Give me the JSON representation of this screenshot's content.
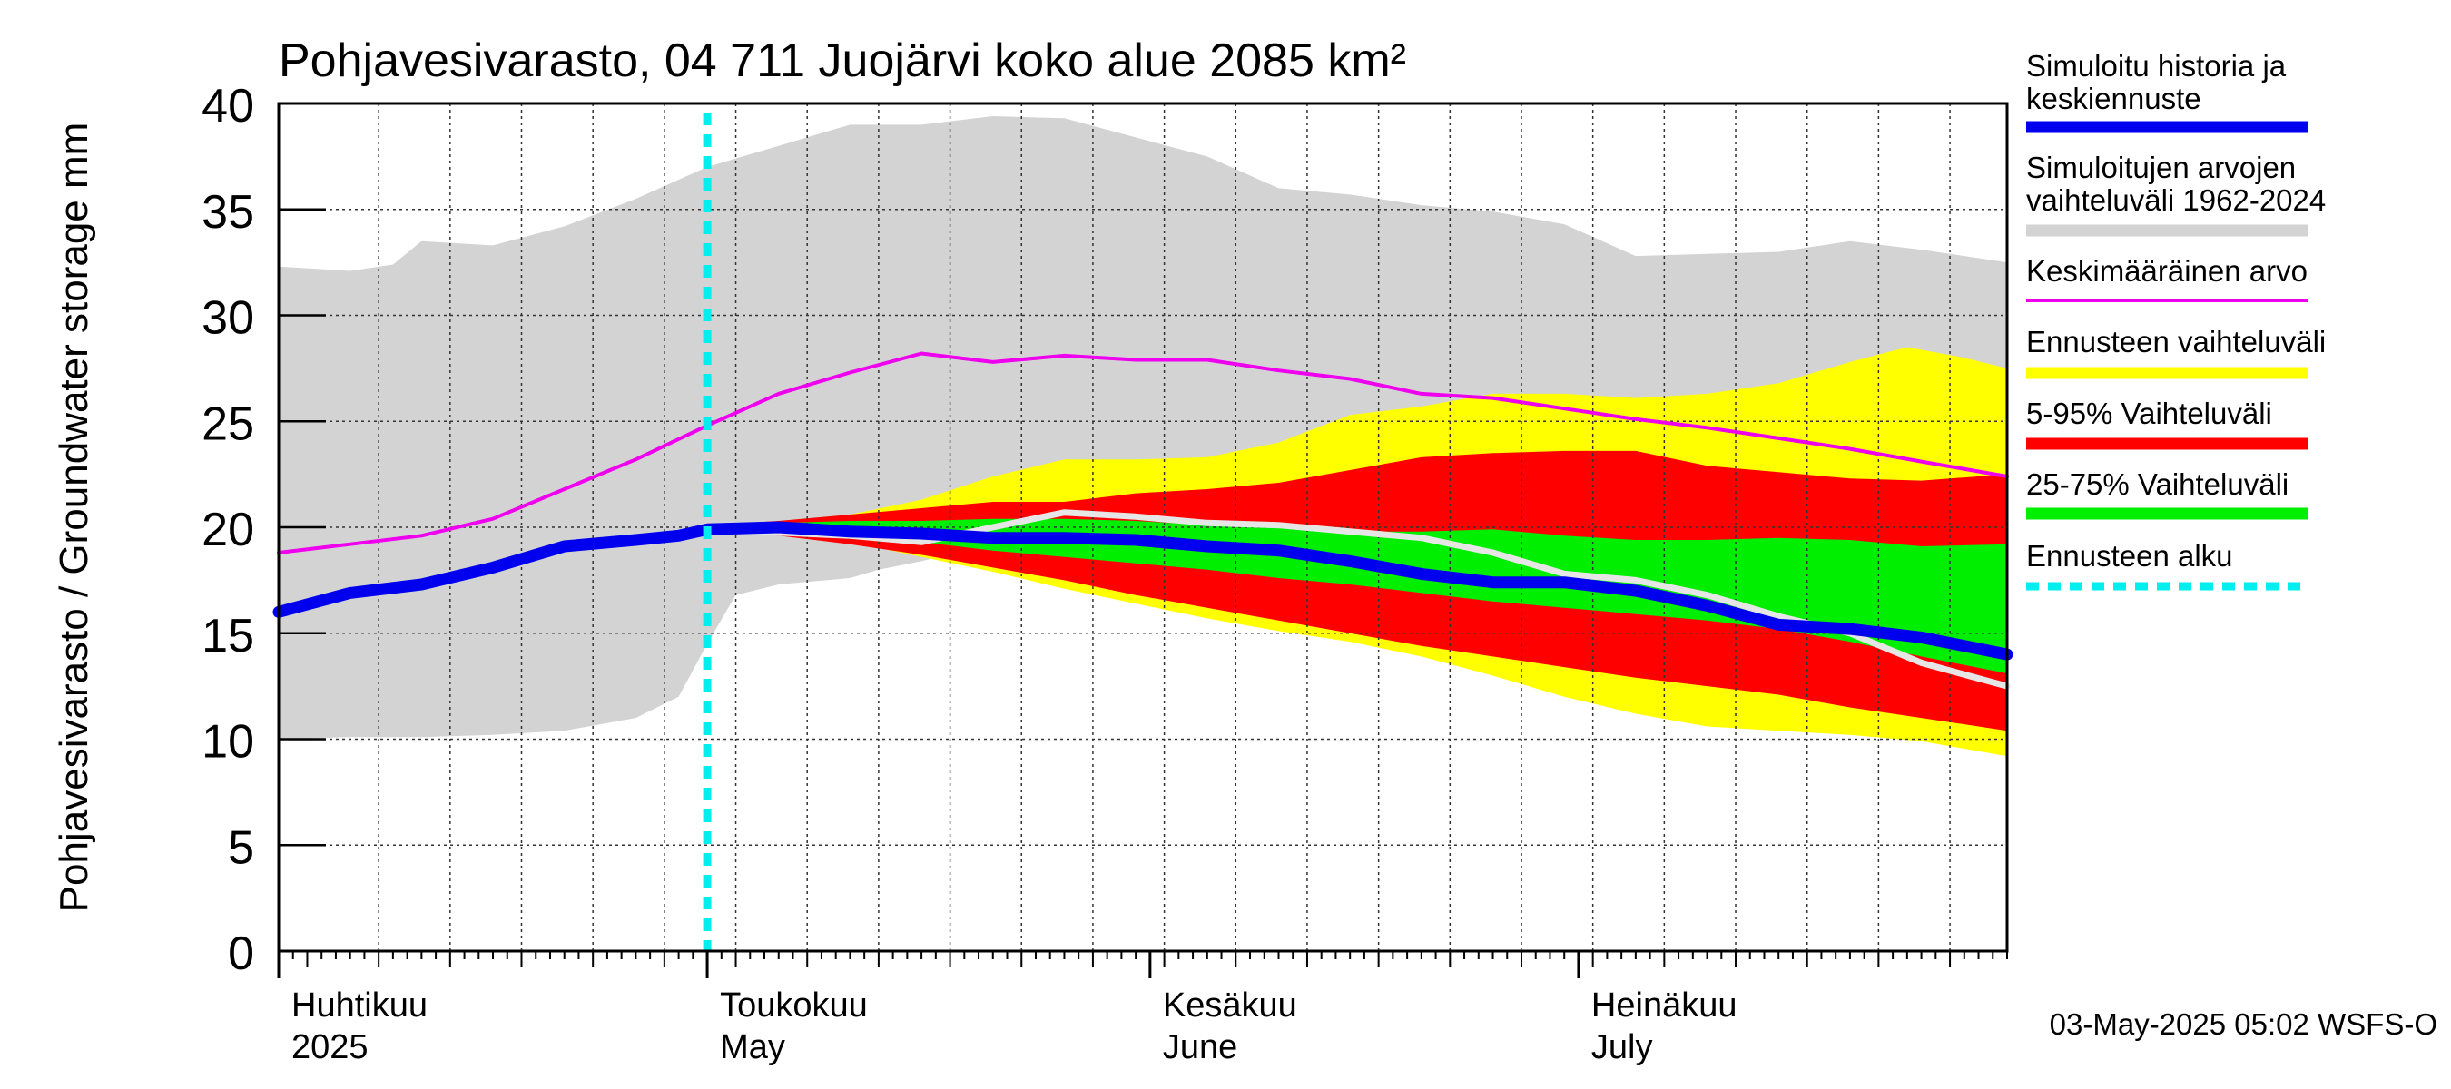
{
  "chart_data": {
    "type": "area",
    "title": "Pohjavesivarasto, 04 711 Juojärvi koko alue 2085 km²",
    "ylabel": "Pohjavesivarasto / Groundwater storage   mm",
    "ylim": [
      0,
      40
    ],
    "xlim": [
      0,
      121
    ],
    "y_ticks": [
      0,
      5,
      10,
      15,
      20,
      25,
      30,
      35,
      40
    ],
    "grid": true,
    "month_labels": [
      {
        "day": 0,
        "fi": "Huhtikuu",
        "en": "2025"
      },
      {
        "day": 30,
        "fi": "Toukokuu",
        "en": "May"
      },
      {
        "day": 61,
        "fi": "Kesäkuu",
        "en": "June"
      },
      {
        "day": 91,
        "fi": "Heinäkuu",
        "en": "July"
      }
    ],
    "forecast_start_day": 30,
    "legend": [
      {
        "label": "Simuloitu historia ja keskiennuste",
        "color": "#0000ee"
      },
      {
        "label": "Simuloitujen arvojen vaihteluväli 1962-2024",
        "color": "#d3d3d3"
      },
      {
        "label": "Keskimääräinen arvo",
        "color": "#ee00ee"
      },
      {
        "label": "Ennusteen vaihteluväli",
        "color": "#ffff00"
      },
      {
        "label": "5-95% Vaihteluväli",
        "color": "#ff0000"
      },
      {
        "label": "25-75% Vaihteluväli",
        "color": "#00ee00"
      },
      {
        "label": "Ennusteen alku",
        "color": "#00eeee"
      }
    ],
    "footer": "03-May-2025 05:02 WSFS-O",
    "series": [
      {
        "name": "hist_max",
        "x": [
          0,
          5,
          8,
          10,
          15,
          20,
          25,
          30,
          35,
          40,
          45,
          50,
          55,
          60,
          65,
          70,
          75,
          80,
          85,
          90,
          95,
          100,
          105,
          110,
          115,
          121
        ],
        "values": [
          32.3,
          32.1,
          32.4,
          33.5,
          33.3,
          34.2,
          35.5,
          37.0,
          38.0,
          39.0,
          39.0,
          39.4,
          39.3,
          38.4,
          37.5,
          36.0,
          35.7,
          35.2,
          34.9,
          34.3,
          32.8,
          32.9,
          33.0,
          33.5,
          33.1,
          32.5
        ]
      },
      {
        "name": "hist_min",
        "x": [
          0,
          5,
          10,
          15,
          20,
          25,
          28,
          30,
          32,
          35,
          40,
          42,
          45,
          50,
          55,
          60,
          121
        ],
        "values": [
          10.0,
          10.1,
          10.1,
          10.2,
          10.4,
          11.0,
          12.0,
          14.5,
          16.8,
          17.3,
          17.6,
          18.0,
          18.4,
          19.2,
          19.6,
          20.0,
          20.0
        ]
      },
      {
        "name": "ennuste_max",
        "x": [
          30,
          35,
          40,
          45,
          50,
          55,
          60,
          65,
          70,
          75,
          80,
          85,
          90,
          95,
          100,
          105,
          110,
          114,
          118,
          121
        ],
        "values": [
          20.0,
          20.2,
          20.6,
          21.3,
          22.4,
          23.2,
          23.2,
          23.3,
          24.0,
          25.3,
          25.7,
          26.3,
          26.3,
          26.1,
          26.3,
          26.8,
          27.8,
          28.5,
          28.0,
          27.5
        ]
      },
      {
        "name": "ennuste_min",
        "x": [
          30,
          35,
          40,
          45,
          50,
          55,
          60,
          65,
          70,
          75,
          80,
          85,
          90,
          95,
          100,
          105,
          110,
          115,
          121
        ],
        "values": [
          20.0,
          19.8,
          19.3,
          18.6,
          17.9,
          17.1,
          16.4,
          15.7,
          15.1,
          14.6,
          13.9,
          13.0,
          12.0,
          11.2,
          10.6,
          10.4,
          10.2,
          9.9,
          9.2
        ]
      },
      {
        "name": "p95",
        "x": [
          30,
          35,
          40,
          45,
          50,
          55,
          60,
          65,
          70,
          75,
          80,
          85,
          90,
          95,
          100,
          105,
          110,
          115,
          121
        ],
        "values": [
          20.1,
          20.3,
          20.6,
          20.9,
          21.2,
          21.2,
          21.6,
          21.8,
          22.1,
          22.7,
          23.3,
          23.5,
          23.6,
          23.6,
          22.9,
          22.6,
          22.3,
          22.2,
          22.5
        ]
      },
      {
        "name": "p5",
        "x": [
          30,
          35,
          40,
          45,
          50,
          55,
          60,
          65,
          70,
          75,
          80,
          85,
          90,
          95,
          100,
          105,
          110,
          115,
          121
        ],
        "values": [
          19.8,
          19.6,
          19.2,
          18.7,
          18.1,
          17.5,
          16.8,
          16.2,
          15.6,
          15.0,
          14.4,
          13.9,
          13.4,
          12.9,
          12.5,
          12.1,
          11.5,
          11.0,
          10.4
        ]
      },
      {
        "name": "p75",
        "x": [
          30,
          35,
          40,
          45,
          50,
          55,
          60,
          65,
          70,
          75,
          80,
          85,
          90,
          95,
          100,
          105,
          110,
          115,
          121
        ],
        "values": [
          20.0,
          20.2,
          20.3,
          20.3,
          20.4,
          20.4,
          20.3,
          20.1,
          20.0,
          19.8,
          19.8,
          19.9,
          19.6,
          19.4,
          19.4,
          19.5,
          19.4,
          19.1,
          19.2
        ]
      },
      {
        "name": "p25",
        "x": [
          30,
          35,
          40,
          45,
          50,
          55,
          60,
          65,
          70,
          75,
          80,
          85,
          90,
          95,
          100,
          105,
          110,
          115,
          121
        ],
        "values": [
          19.9,
          19.8,
          19.6,
          19.3,
          18.9,
          18.6,
          18.3,
          18.0,
          17.6,
          17.3,
          16.9,
          16.5,
          16.2,
          15.9,
          15.6,
          15.2,
          14.6,
          13.9,
          13.1
        ]
      },
      {
        "name": "grey_median",
        "x": [
          30,
          40,
          45,
          50,
          55,
          60,
          65,
          70,
          75,
          80,
          85,
          90,
          95,
          100,
          105,
          110,
          115,
          121
        ],
        "values": [
          19.9,
          19.6,
          19.3,
          20.0,
          20.7,
          20.5,
          20.2,
          20.1,
          19.8,
          19.5,
          18.8,
          17.8,
          17.5,
          16.8,
          15.8,
          15.0,
          13.6,
          12.5
        ]
      },
      {
        "name": "Keskimääräinen arvo",
        "x": [
          0,
          5,
          10,
          15,
          20,
          25,
          30,
          35,
          40,
          45,
          50,
          55,
          60,
          65,
          70,
          75,
          80,
          85,
          90,
          95,
          100,
          105,
          110,
          115,
          121
        ],
        "values": [
          18.8,
          19.2,
          19.6,
          20.4,
          21.8,
          23.2,
          24.8,
          26.3,
          27.3,
          28.2,
          27.8,
          28.1,
          27.9,
          27.9,
          27.4,
          27.0,
          26.3,
          26.1,
          25.6,
          25.1,
          24.7,
          24.2,
          23.7,
          23.1,
          22.4
        ]
      },
      {
        "name": "Simuloitu historia ja keskiennuste",
        "x": [
          0,
          5,
          10,
          15,
          20,
          25,
          28,
          30,
          35,
          40,
          45,
          50,
          55,
          60,
          65,
          70,
          75,
          80,
          85,
          90,
          95,
          100,
          105,
          110,
          115,
          121
        ],
        "values": [
          16.0,
          16.9,
          17.3,
          18.1,
          19.1,
          19.4,
          19.6,
          19.9,
          20.0,
          19.8,
          19.7,
          19.5,
          19.5,
          19.4,
          19.1,
          18.9,
          18.4,
          17.8,
          17.4,
          17.4,
          17.0,
          16.3,
          15.4,
          15.2,
          14.8,
          14.0
        ]
      }
    ]
  }
}
